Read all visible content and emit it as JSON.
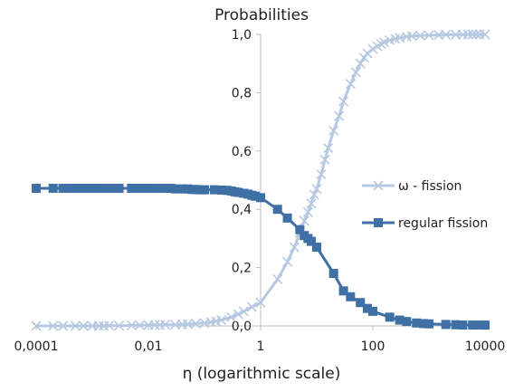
{
  "chart_data": {
    "type": "line",
    "title": "Probabilities",
    "xlabel": "η (logarithmic  scale)",
    "ylabel": "",
    "x_scale": "log",
    "xlim": [
      0.0001,
      10000
    ],
    "ylim": [
      0,
      1
    ],
    "x_tick_values": [
      0.0001,
      0.01,
      1,
      100,
      10000
    ],
    "x_tick_labels": [
      "0,0001",
      "0,01",
      "1",
      "100",
      "10000"
    ],
    "y_tick_values": [
      0,
      0.2,
      0.4,
      0.6,
      0.8,
      1.0
    ],
    "y_tick_labels": [
      "0,0",
      "0,2",
      "0,4",
      "0,6",
      "0,8",
      "1,0"
    ],
    "grid": false,
    "legend_position": "right",
    "series": [
      {
        "name": "ω - fission",
        "color": "#b7c9e2",
        "marker": "x",
        "x": [
          0.0001,
          0.0002,
          0.0003,
          0.0005,
          0.0007,
          0.001,
          0.0013,
          0.0016,
          0.002,
          0.003,
          0.005,
          0.007,
          0.01,
          0.013,
          0.016,
          0.02,
          0.03,
          0.04,
          0.05,
          0.07,
          0.1,
          0.13,
          0.16,
          0.2,
          0.3,
          0.4,
          0.5,
          0.7,
          1,
          2,
          3,
          4,
          5,
          6,
          7,
          8,
          9,
          10,
          12,
          14,
          16,
          20,
          25,
          30,
          40,
          50,
          60,
          70,
          80,
          100,
          120,
          140,
          160,
          200,
          250,
          300,
          400,
          500,
          700,
          1000,
          1500,
          2000,
          3000,
          4000,
          5000,
          6000,
          7000,
          8000,
          10000
        ],
        "values": [
          0.0,
          0.0,
          0.0,
          0.0,
          0.0,
          0.0,
          0.0,
          0.0,
          0.001,
          0.001,
          0.002,
          0.002,
          0.003,
          0.003,
          0.003,
          0.004,
          0.004,
          0.005,
          0.006,
          0.008,
          0.01,
          0.013,
          0.016,
          0.02,
          0.03,
          0.04,
          0.05,
          0.065,
          0.08,
          0.16,
          0.22,
          0.27,
          0.32,
          0.36,
          0.39,
          0.42,
          0.45,
          0.47,
          0.52,
          0.57,
          0.61,
          0.67,
          0.72,
          0.77,
          0.83,
          0.87,
          0.9,
          0.92,
          0.935,
          0.95,
          0.96,
          0.967,
          0.973,
          0.98,
          0.985,
          0.988,
          0.992,
          0.994,
          0.996,
          0.997,
          0.998,
          0.999,
          0.999,
          0.999,
          1.0,
          1.0,
          1.0,
          1.0,
          1.0
        ]
      },
      {
        "name": "regular fission",
        "color": "#3e6fa5",
        "marker": "square",
        "x": [
          0.0001,
          0.0002,
          0.0003,
          0.0004,
          0.0005,
          0.0006,
          0.0007,
          0.0008,
          0.001,
          0.0012,
          0.0015,
          0.002,
          0.0025,
          0.003,
          0.005,
          0.006,
          0.007,
          0.008,
          0.01,
          0.012,
          0.015,
          0.02,
          0.025,
          0.03,
          0.04,
          0.05,
          0.06,
          0.07,
          0.08,
          0.1,
          0.15,
          0.2,
          0.25,
          0.3,
          0.35,
          0.4,
          0.5,
          0.6,
          0.7,
          0.8,
          1,
          2,
          3,
          5,
          6,
          7,
          8,
          10,
          20,
          30,
          40,
          60,
          80,
          100,
          200,
          300,
          400,
          600,
          800,
          1000,
          2000,
          3000,
          4000,
          6000,
          8000,
          10000
        ],
        "values": [
          0.472,
          0.472,
          0.472,
          0.472,
          0.472,
          0.472,
          0.472,
          0.472,
          0.472,
          0.472,
          0.472,
          0.472,
          0.472,
          0.472,
          0.472,
          0.472,
          0.472,
          0.472,
          0.472,
          0.472,
          0.472,
          0.472,
          0.472,
          0.47,
          0.47,
          0.47,
          0.468,
          0.468,
          0.467,
          0.467,
          0.467,
          0.466,
          0.465,
          0.463,
          0.46,
          0.458,
          0.455,
          0.452,
          0.448,
          0.445,
          0.44,
          0.4,
          0.37,
          0.33,
          0.31,
          0.3,
          0.29,
          0.27,
          0.18,
          0.12,
          0.1,
          0.08,
          0.06,
          0.05,
          0.03,
          0.02,
          0.015,
          0.01,
          0.008,
          0.007,
          0.005,
          0.004,
          0.003,
          0.003,
          0.003,
          0.003
        ]
      }
    ]
  }
}
